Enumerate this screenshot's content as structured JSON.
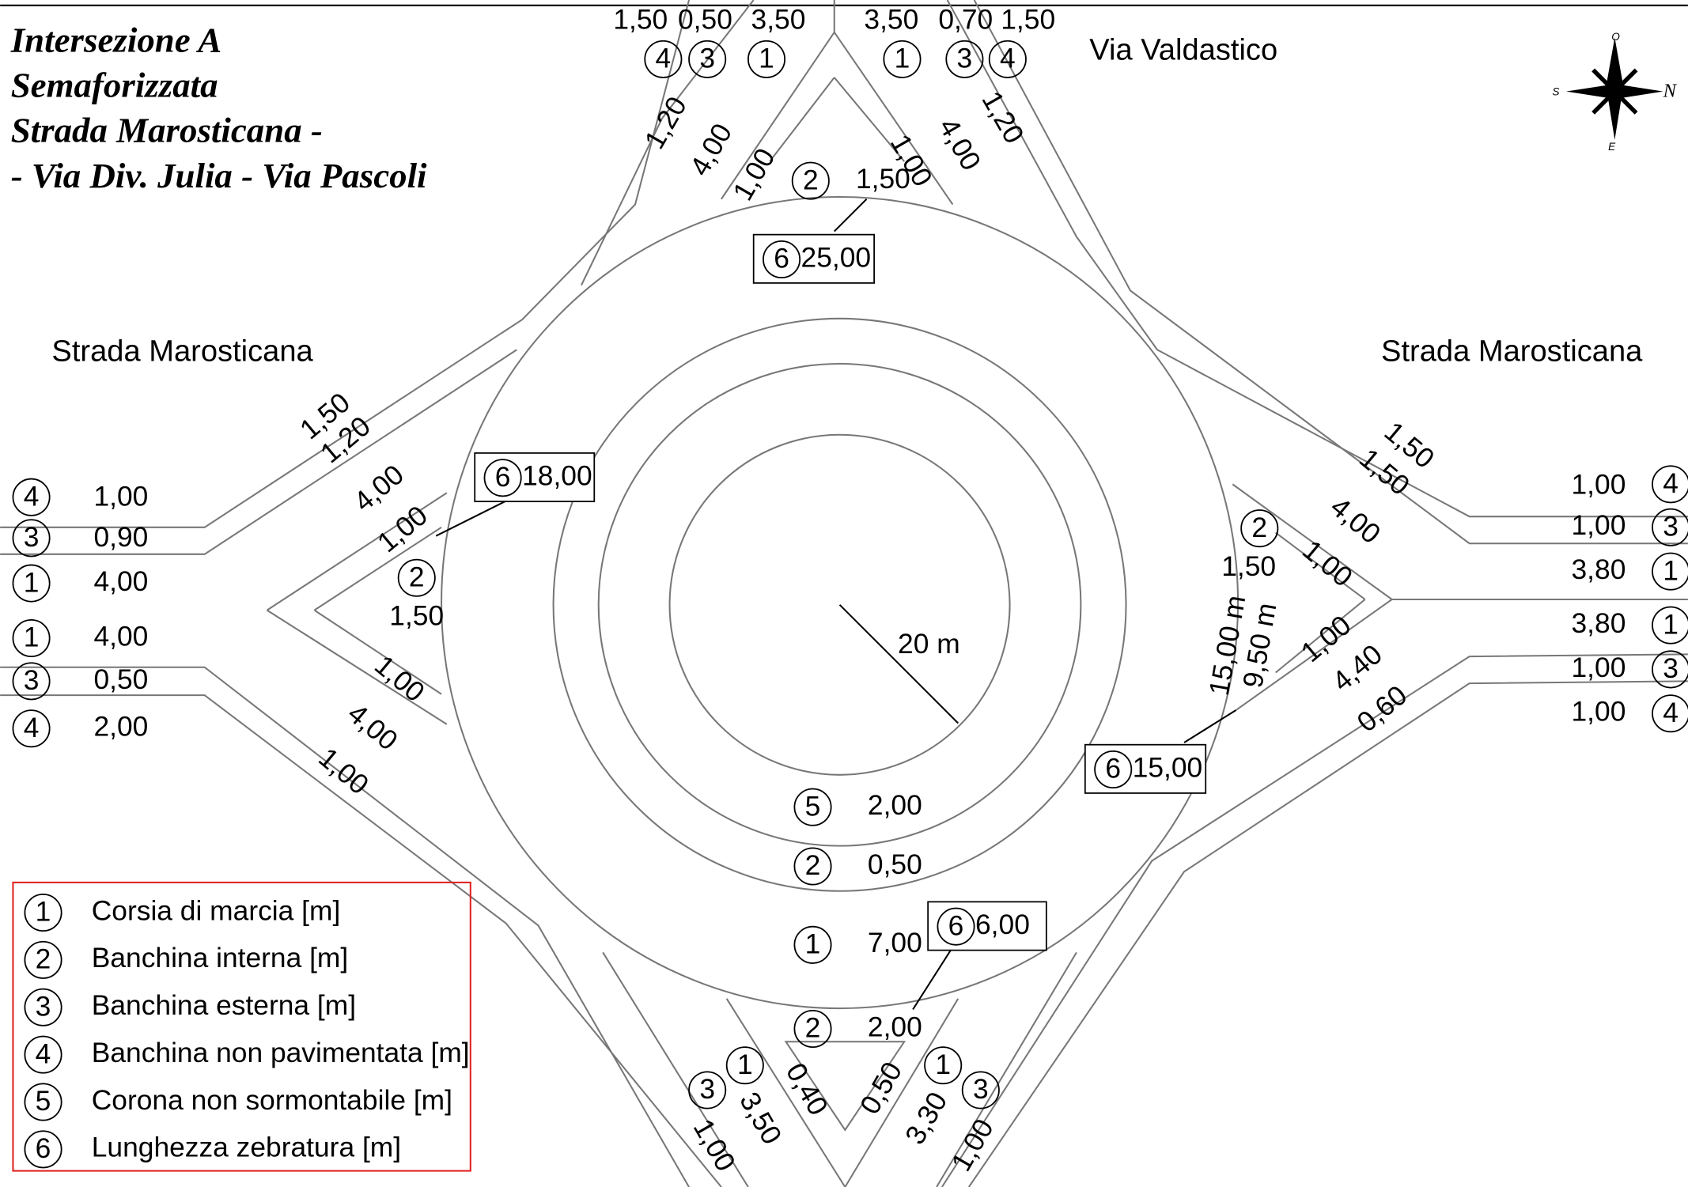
{
  "title": [
    "Intersezione A",
    "Semaforizzata",
    "Strada Marosticana -",
    "- Via Div. Julia - Via Pascoli"
  ],
  "roads": [
    "Via Valdastico",
    "Strada Marosticana",
    "Strada Marosticana"
  ],
  "compass": {
    "west": "O",
    "south": "S",
    "north": "N",
    "east": "E"
  },
  "radius": "20 m",
  "markers": [
    "4",
    "3",
    "1",
    "1",
    "3",
    "4",
    "2",
    "2",
    "4",
    "3",
    "1",
    "1",
    "3",
    "4",
    "2",
    "4",
    "3",
    "1",
    "1",
    "3",
    "4",
    "5",
    "2",
    "1",
    "2",
    "1",
    "3",
    "1",
    "3"
  ],
  "dimensions": [
    "1,50",
    "0,50",
    "3,50",
    "3,50",
    "0,70",
    "1,50",
    "1,20",
    "4,00",
    "1,00",
    "1,20",
    "4,00",
    "1,00",
    "1,50",
    "1,50",
    "1,20",
    "4,00",
    "1,00",
    "1,50",
    "1,00",
    "4,00",
    "1,00",
    "1,00",
    "0,90",
    "4,00",
    "4,00",
    "0,50",
    "2,00",
    "1,50",
    "1,50",
    "4,00",
    "1,00",
    "1,50",
    "15,00 m",
    "9,50 m",
    "1,00",
    "4,40",
    "0,60",
    "1,00",
    "1,00",
    "3,80",
    "3,80",
    "1,00",
    "1,00",
    "2,00",
    "0,50",
    "7,00",
    "2,00",
    "0,40",
    "3,50",
    "1,00",
    "0,50",
    "3,30",
    "1,00"
  ],
  "boxes": [
    {
      "number": "6",
      "value": "25,00"
    },
    {
      "number": "6",
      "value": "18,00"
    },
    {
      "number": "6",
      "value": "15,00"
    },
    {
      "number": "6",
      "value": "6,00"
    }
  ],
  "legend": [
    {
      "number": "1",
      "text": "Corsia di marcia  [m]"
    },
    {
      "number": "2",
      "text": "Banchina interna  [m]"
    },
    {
      "number": "3",
      "text": "Banchina esterna  [m]"
    },
    {
      "number": "4",
      "text": "Banchina non pavimentata  [m]"
    },
    {
      "number": "5",
      "text": "Corona non sormontabile  [m]"
    },
    {
      "number": "6",
      "text": "Lunghezza zebratura  [m]"
    }
  ]
}
